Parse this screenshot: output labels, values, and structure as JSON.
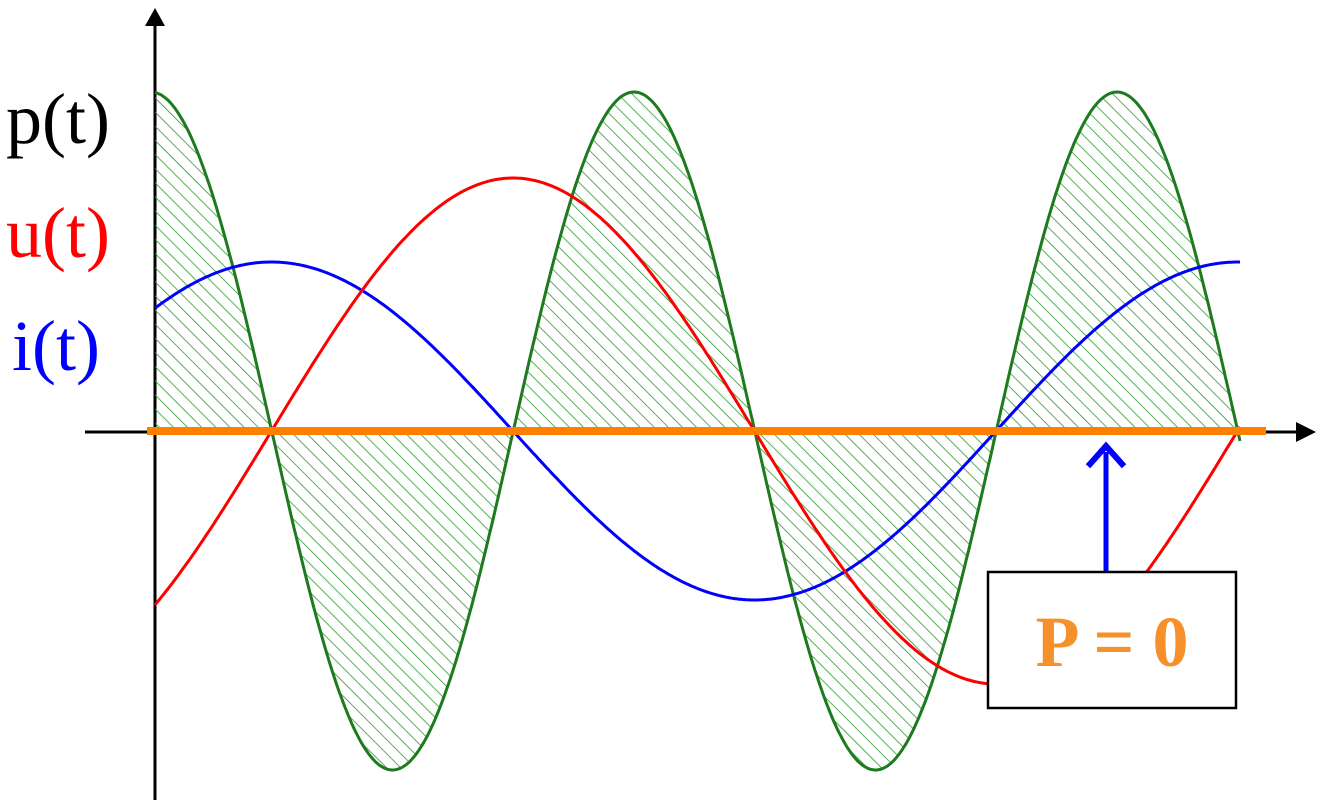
{
  "labels": {
    "p": "p(t)",
    "u": "u(t)",
    "i": "i(t)"
  },
  "annotation": {
    "text": "P = 0"
  },
  "colors": {
    "p": "#1e7a1e",
    "p_fill": "#2e9a2e",
    "u": "#ff0000",
    "i": "#0000ff",
    "mean": "#ff8000",
    "annotation_text": "#f5902a",
    "axis": "#000000"
  }
}
